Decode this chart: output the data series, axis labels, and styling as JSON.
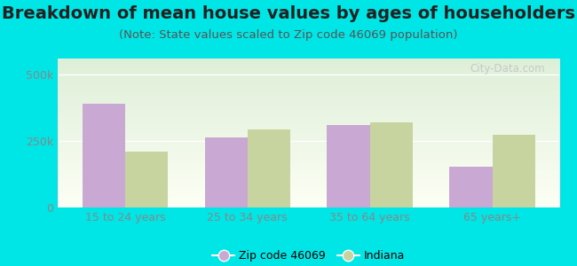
{
  "title": "Breakdown of mean house values by ages of householders",
  "subtitle": "(Note: State values scaled to Zip code 46069 population)",
  "categories": [
    "15 to 24 years",
    "25 to 34 years",
    "35 to 64 years",
    "65 years+"
  ],
  "zip_values": [
    390000,
    265000,
    310000,
    155000
  ],
  "state_values": [
    210000,
    295000,
    320000,
    275000
  ],
  "zip_color": "#c9a8d4",
  "state_color": "#c8d4a0",
  "figure_bg": "#00e5e5",
  "plot_bg_top": "#deefd8",
  "plot_bg_bottom": "#fdfff5",
  "ylim": [
    0,
    560000
  ],
  "yticks": [
    0,
    250000,
    500000
  ],
  "ytick_labels": [
    "0",
    "250k",
    "500k"
  ],
  "bar_width": 0.35,
  "legend_zip_label": "Zip code 46069",
  "legend_state_label": "Indiana",
  "title_fontsize": 14,
  "subtitle_fontsize": 9.5,
  "tick_fontsize": 9,
  "legend_fontsize": 9,
  "watermark": "City-Data.com"
}
